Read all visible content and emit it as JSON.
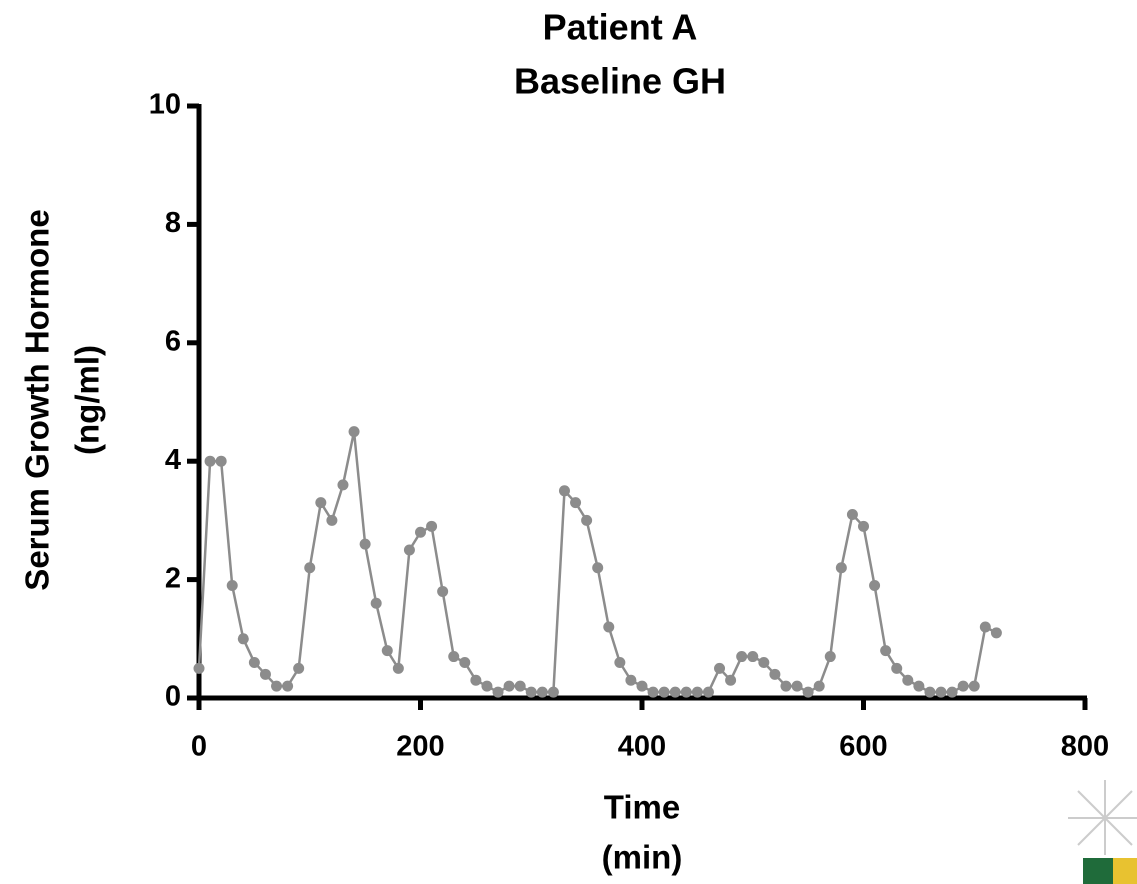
{
  "chart_data": {
    "type": "line",
    "title": [
      "Patient A",
      "Baseline GH"
    ],
    "x_label": [
      "Time",
      "(min)"
    ],
    "y_label": [
      "Serum Growth Hormone",
      "(ng/ml)"
    ],
    "x": [
      0,
      10,
      20,
      30,
      40,
      50,
      60,
      70,
      80,
      90,
      100,
      110,
      120,
      130,
      140,
      150,
      160,
      170,
      180,
      190,
      200,
      210,
      220,
      230,
      240,
      250,
      260,
      270,
      280,
      290,
      300,
      310,
      320,
      330,
      340,
      350,
      360,
      370,
      380,
      390,
      400,
      410,
      420,
      430,
      440,
      450,
      460,
      470,
      480,
      490,
      500,
      510,
      520,
      530,
      540,
      550,
      560,
      570,
      580,
      590,
      600,
      610,
      620,
      630,
      640,
      650,
      660,
      670,
      680,
      690,
      700,
      710,
      720
    ],
    "series": [
      {
        "color": "#8c8c8c",
        "values": [
          0.5,
          4.0,
          4.0,
          1.9,
          1.0,
          0.6,
          0.4,
          0.2,
          0.2,
          0.5,
          2.2,
          3.3,
          3.0,
          3.6,
          4.5,
          2.6,
          1.6,
          0.8,
          0.5,
          2.5,
          2.8,
          2.9,
          1.8,
          0.7,
          0.6,
          0.3,
          0.2,
          0.1,
          0.2,
          0.2,
          0.1,
          0.1,
          0.1,
          3.5,
          3.3,
          3.0,
          2.2,
          1.2,
          0.6,
          0.3,
          0.2,
          0.1,
          0.1,
          0.1,
          0.1,
          0.1,
          0.1,
          0.5,
          0.3,
          0.7,
          0.7,
          0.6,
          0.4,
          0.2,
          0.2,
          0.1,
          0.2,
          0.7,
          2.2,
          3.1,
          2.9,
          1.9,
          0.8,
          0.5,
          0.3,
          0.2,
          0.1,
          0.1,
          0.1,
          0.2,
          0.2,
          1.2,
          1.1
        ]
      }
    ],
    "xlim": [
      0,
      800
    ],
    "xticks": [
      0,
      200,
      400,
      600,
      800
    ],
    "ylim": [
      0,
      10
    ],
    "yticks": [
      0,
      2,
      4,
      6,
      8,
      10
    ]
  }
}
